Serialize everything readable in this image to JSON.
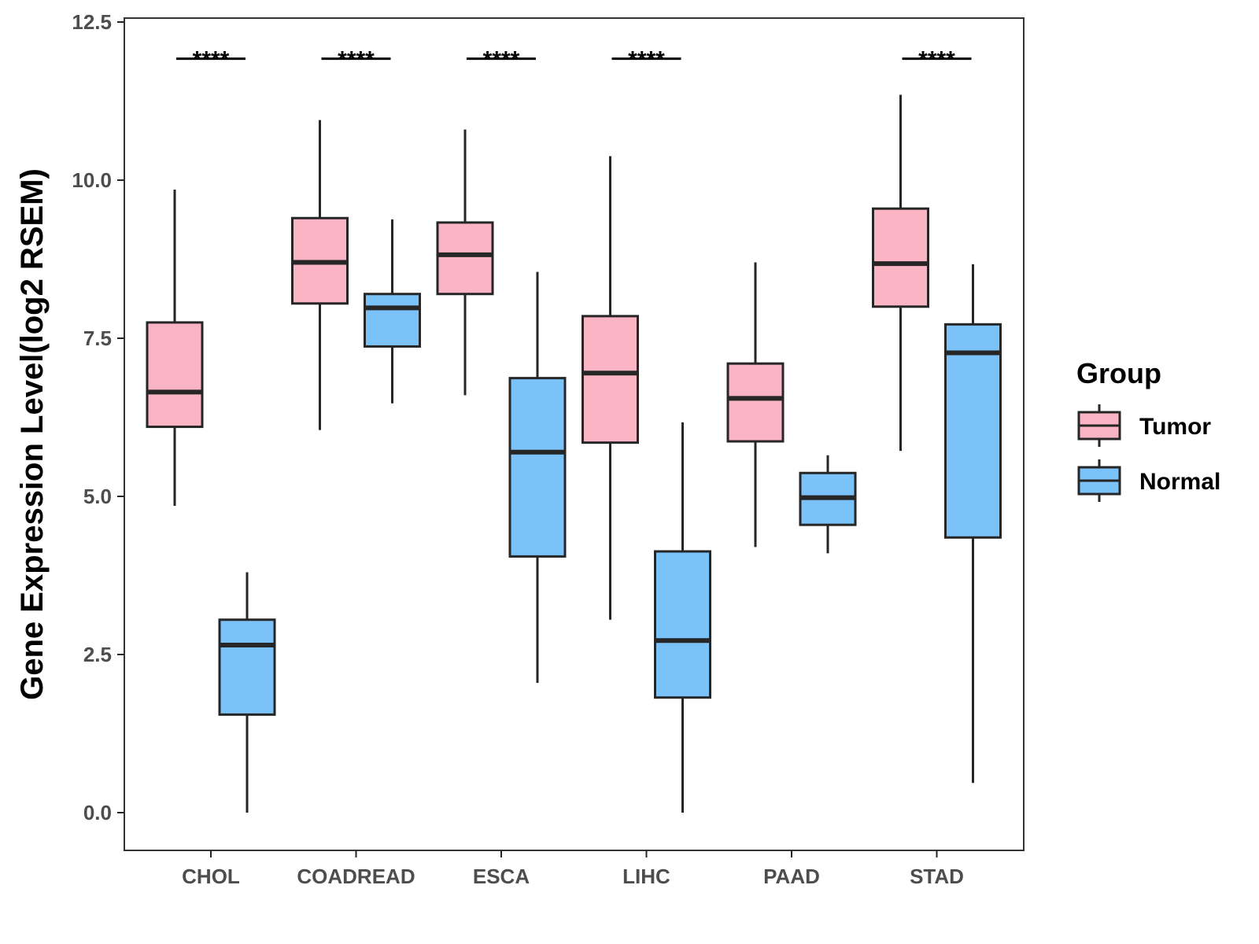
{
  "chart_data": {
    "type": "box",
    "title": "",
    "xlabel": "",
    "ylabel": "Gene Expression Level(log2 RSEM)",
    "ylim": [
      -0.3,
      12.6
    ],
    "yticks": [
      0.0,
      2.5,
      5.0,
      7.5,
      10.0,
      12.5
    ],
    "ytick_labels": [
      "0.0",
      "2.5",
      "5.0",
      "7.5",
      "10.0",
      "12.5"
    ],
    "categories": [
      "CHOL",
      "COADREAD",
      "ESCA",
      "LIHC",
      "PAAD",
      "STAD"
    ],
    "legend": {
      "title": "Group",
      "placement": "right",
      "entries": [
        "Tumor",
        "Normal"
      ]
    },
    "series": [
      {
        "name": "Tumor",
        "color": "#fbb4c4",
        "boxes": [
          {
            "category": "CHOL",
            "whisker_low": 4.85,
            "q1": 6.1,
            "median": 6.65,
            "q3": 7.75,
            "whisker_high": 9.85
          },
          {
            "category": "COADREAD",
            "whisker_low": 6.05,
            "q1": 8.05,
            "median": 8.7,
            "q3": 9.4,
            "whisker_high": 10.95
          },
          {
            "category": "ESCA",
            "whisker_low": 6.6,
            "q1": 8.2,
            "median": 8.82,
            "q3": 9.33,
            "whisker_high": 10.8
          },
          {
            "category": "LIHC",
            "whisker_low": 3.05,
            "q1": 5.85,
            "median": 6.95,
            "q3": 7.85,
            "whisker_high": 10.38
          },
          {
            "category": "PAAD",
            "whisker_low": 4.2,
            "q1": 5.87,
            "median": 6.55,
            "q3": 7.1,
            "whisker_high": 8.7
          },
          {
            "category": "STAD",
            "whisker_low": 5.72,
            "q1": 8.0,
            "median": 8.68,
            "q3": 9.55,
            "whisker_high": 11.35
          }
        ]
      },
      {
        "name": "Normal",
        "color": "#7ac2f8",
        "boxes": [
          {
            "category": "CHOL",
            "whisker_low": 0.0,
            "q1": 1.55,
            "median": 2.65,
            "q3": 3.05,
            "whisker_high": 3.8
          },
          {
            "category": "COADREAD",
            "whisker_low": 6.47,
            "q1": 7.37,
            "median": 7.98,
            "q3": 8.2,
            "whisker_high": 9.38
          },
          {
            "category": "ESCA",
            "whisker_low": 2.05,
            "q1": 4.05,
            "median": 5.7,
            "q3": 6.87,
            "whisker_high": 8.55
          },
          {
            "category": "LIHC",
            "whisker_low": 0.0,
            "q1": 1.82,
            "median": 2.72,
            "q3": 4.13,
            "whisker_high": 6.17
          },
          {
            "category": "PAAD",
            "whisker_low": 4.1,
            "q1": 4.55,
            "median": 4.98,
            "q3": 5.37,
            "whisker_high": 5.65
          },
          {
            "category": "STAD",
            "whisker_low": 0.47,
            "q1": 4.35,
            "median": 7.27,
            "q3": 7.72,
            "whisker_high": 8.67
          }
        ]
      }
    ],
    "annotations": [
      {
        "category": "CHOL",
        "label": "****"
      },
      {
        "category": "COADREAD",
        "label": "****"
      },
      {
        "category": "ESCA",
        "label": "****"
      },
      {
        "category": "LIHC",
        "label": "****"
      },
      {
        "category": "STAD",
        "label": "****"
      }
    ],
    "significance_level": 11.92,
    "colors": {
      "box_outline": "#262626",
      "axis": "#262626",
      "tick_text": "#4d4d4d"
    }
  }
}
